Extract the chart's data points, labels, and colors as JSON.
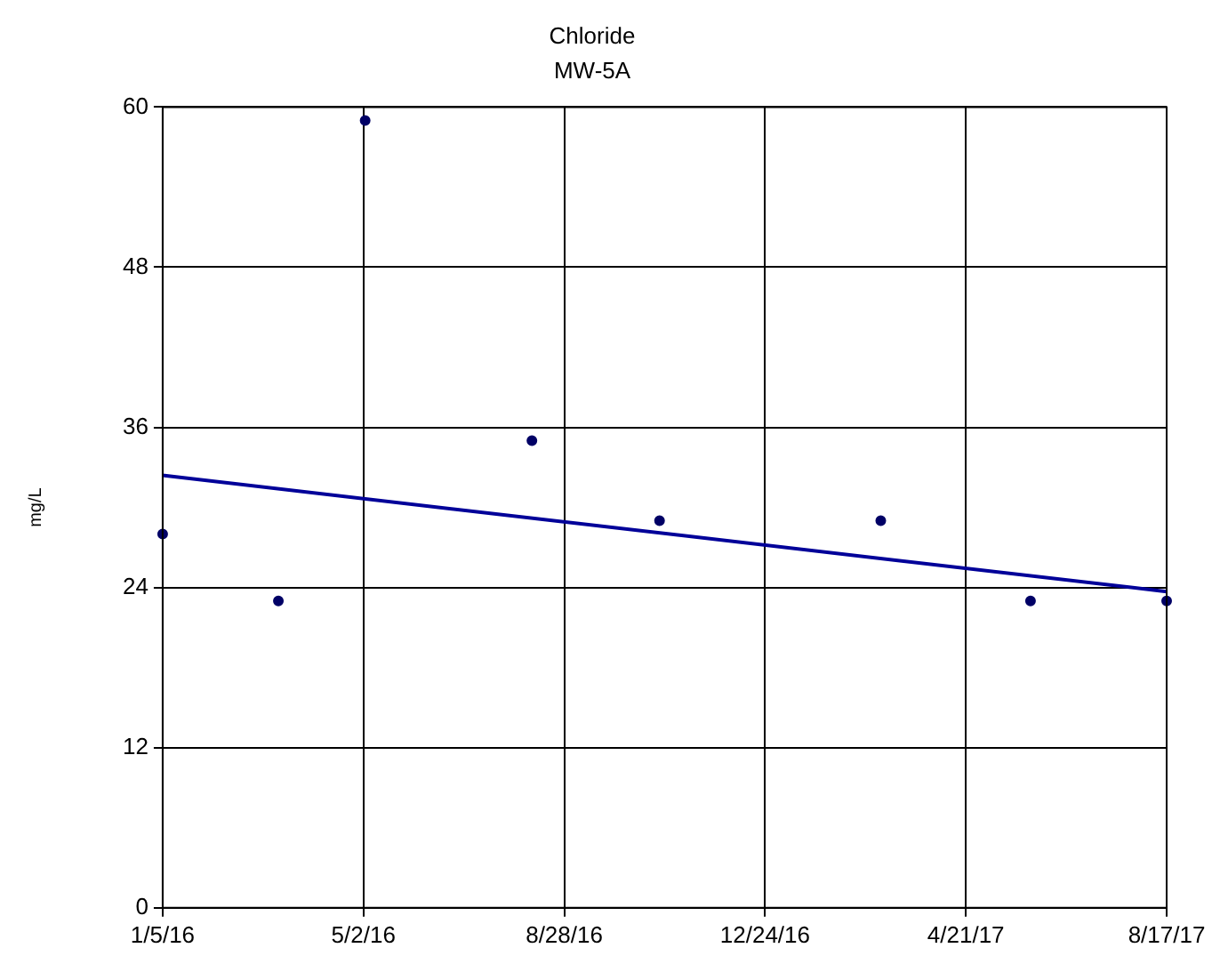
{
  "chart_data": {
    "type": "scatter",
    "title": "Chloride",
    "subtitle": "MW-5A",
    "ylabel": "mg/L",
    "x": [
      "2016-01-05",
      "2016-03-13",
      "2016-05-03",
      "2016-08-09",
      "2016-10-23",
      "2017-03-02",
      "2017-05-29",
      "2017-08-17"
    ],
    "series": [
      {
        "marker": "circle",
        "color": "#000066",
        "values": [
          28,
          23,
          59,
          35,
          29,
          29,
          23,
          23
        ]
      },
      {
        "type": "line",
        "color": "#000099",
        "x": [
          "2016-01-05",
          "2017-08-17"
        ],
        "values": [
          32.4,
          23.7
        ]
      }
    ],
    "xlim": [
      "2016-01-05",
      "2017-08-17"
    ],
    "xticks": [
      {
        "value": "2016-01-05",
        "label": "1/5/16"
      },
      {
        "value": "2016-05-02",
        "label": "5/2/16"
      },
      {
        "value": "2016-08-28",
        "label": "8/28/16"
      },
      {
        "value": "2016-12-24",
        "label": "12/24/16"
      },
      {
        "value": "2017-04-21",
        "label": "4/21/17"
      },
      {
        "value": "2017-08-17",
        "label": "8/17/17"
      }
    ],
    "ylim": [
      0,
      60
    ],
    "yticks": [
      0,
      12,
      24,
      36,
      48,
      60
    ],
    "grid": true,
    "legend": false
  }
}
